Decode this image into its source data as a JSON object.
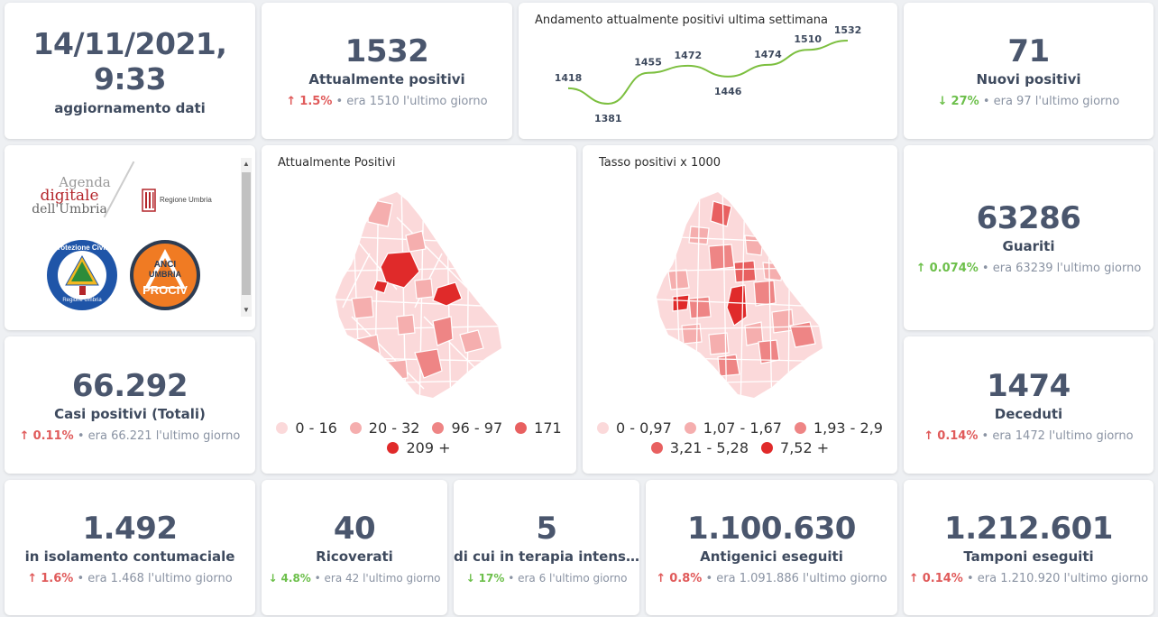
{
  "update": {
    "datetime": "14/11/2021, 9:33",
    "label": "aggiornamento dati"
  },
  "attualmente_positivi": {
    "value": "1532",
    "label": "Attualmente positivi",
    "arrow": "↑",
    "pct": "1.5%",
    "rest": "• era 1510  l'ultimo giorno"
  },
  "trend": {
    "title": "Andamento attualmente positivi ultima settimana",
    "chart_data": {
      "type": "line",
      "values": [
        1418,
        1381,
        1455,
        1472,
        1446,
        1474,
        1510,
        1532
      ],
      "labels": [
        "1418",
        "1381",
        "1455",
        "1472",
        "1446",
        "1474",
        "1510",
        "1532"
      ],
      "color": "#7cbf3f"
    }
  },
  "nuovi_positivi": {
    "value": "71",
    "label": "Nuovi positivi",
    "arrow": "↓",
    "pct": "27%",
    "rest": "• era 97  l'ultimo giorno"
  },
  "logos": {
    "agenda_line1": "Agenda",
    "agenda_line2": "digitale",
    "agenda_line3": "dell'Umbria",
    "regione": "Regione Umbria",
    "protezione": "Protezione Civile",
    "protezione_sub": "Regione Umbria",
    "anci_line1": "ANCI",
    "anci_line2": "UMBRIA",
    "anci_line3": "PROCIV"
  },
  "map1": {
    "title": "Attualmente Positivi",
    "legend": [
      {
        "label": "0 - 16",
        "color": "#fbd9da"
      },
      {
        "label": "20 - 32",
        "color": "#f5aeae"
      },
      {
        "label": "96 - 97",
        "color": "#ee8585"
      },
      {
        "label": "171",
        "color": "#e86060"
      },
      {
        "label": "209 +",
        "color": "#e02a2a"
      }
    ]
  },
  "map2": {
    "title": "Tasso positivi x 1000",
    "legend": [
      {
        "label": "0 - 0,97",
        "color": "#fbd9da"
      },
      {
        "label": "1,07 - 1,67",
        "color": "#f5aeae"
      },
      {
        "label": "1,93 - 2,9",
        "color": "#ee8585"
      },
      {
        "label": "3,21 - 5,28",
        "color": "#e86060"
      },
      {
        "label": "7,52 +",
        "color": "#e02a2a"
      }
    ]
  },
  "guariti": {
    "value": "63286",
    "label": "Guariti",
    "arrow": "↑",
    "pct": "0.074%",
    "rest": "• era 63239  l'ultimo giorno"
  },
  "casi_totali": {
    "value": "66.292",
    "label": "Casi positivi (Totali)",
    "arrow": "↑",
    "pct": "0.11%",
    "rest": "• era 66.221  l'ultimo giorno"
  },
  "deceduti": {
    "value": "1474",
    "label": "Deceduti",
    "arrow": "↑",
    "pct": "0.14%",
    "rest": "• era 1472  l'ultimo giorno"
  },
  "isolamento": {
    "value": "1.492",
    "label": "in isolamento contumaciale",
    "arrow": "↑",
    "pct": "1.6%",
    "rest": "• era 1.468  l'ultimo giorno"
  },
  "ricoverati": {
    "value": "40",
    "label": "Ricoverati",
    "arrow": "↓",
    "pct": "4.8%",
    "rest": "• era 42  l'ultimo giorno"
  },
  "terapia": {
    "value": "5",
    "label": "di cui in terapia intens…",
    "arrow": "↓",
    "pct": "17%",
    "rest": "• era 6  l'ultimo giorno"
  },
  "antigenici": {
    "value": "1.100.630",
    "label": "Antigenici eseguiti",
    "arrow": "↑",
    "pct": "0.8%",
    "rest": "• era 1.091.886  l'ultimo giorno"
  },
  "tamponi": {
    "value": "1.212.601",
    "label": "Tamponi eseguiti",
    "arrow": "↑",
    "pct": "0.14%",
    "rest": "• era 1.210.920  l'ultimo giorno"
  }
}
